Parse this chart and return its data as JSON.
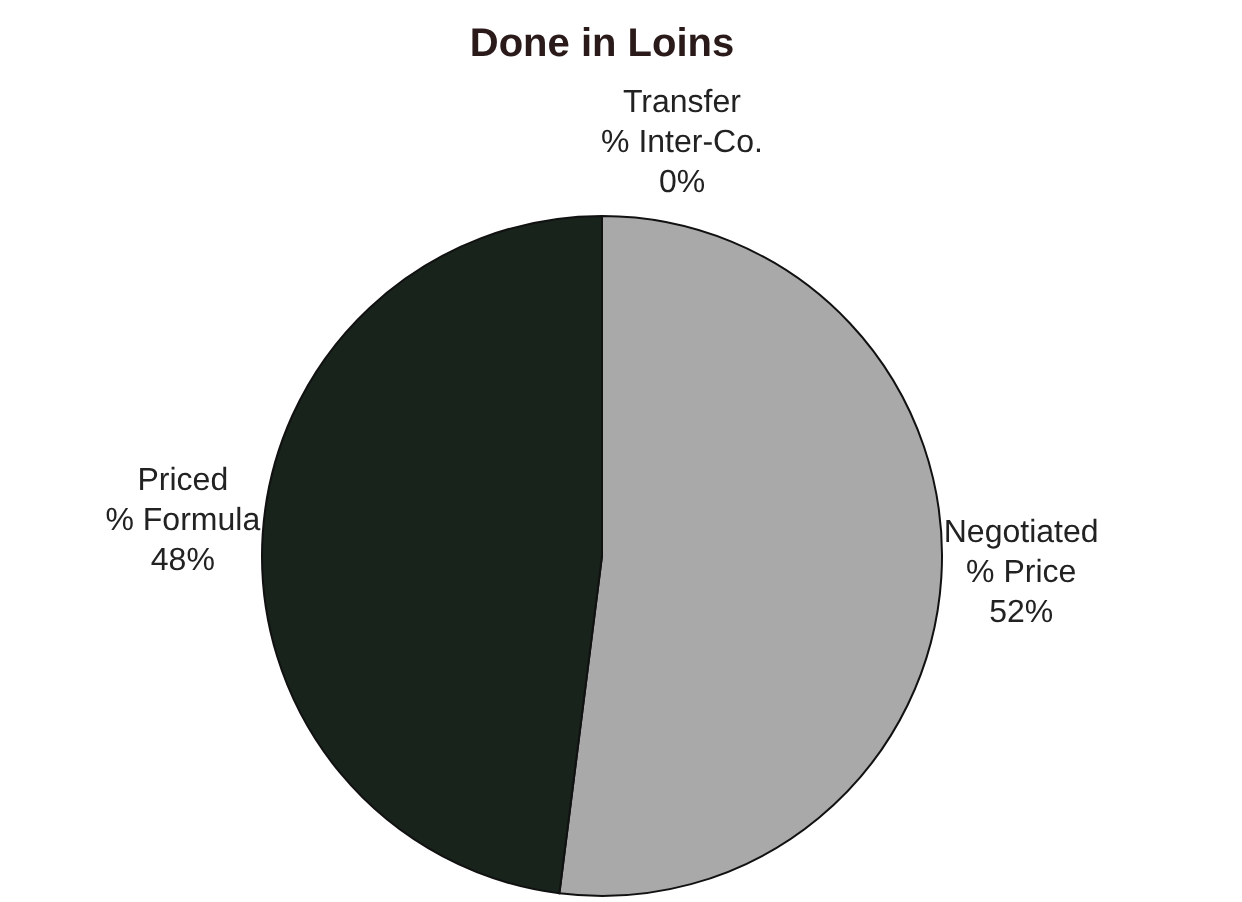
{
  "chart_data": {
    "type": "pie",
    "title": "Done in Loins",
    "categories": [
      "Negotiated\n% Price",
      "Priced\n% Formula",
      "Transfer\n% Inter-Co."
    ],
    "values": [
      52,
      48,
      0
    ],
    "colors": [
      "#a9a9a9",
      "#18231c",
      "#ffffff"
    ],
    "value_labels": [
      "52%",
      "48%",
      "0%"
    ]
  }
}
